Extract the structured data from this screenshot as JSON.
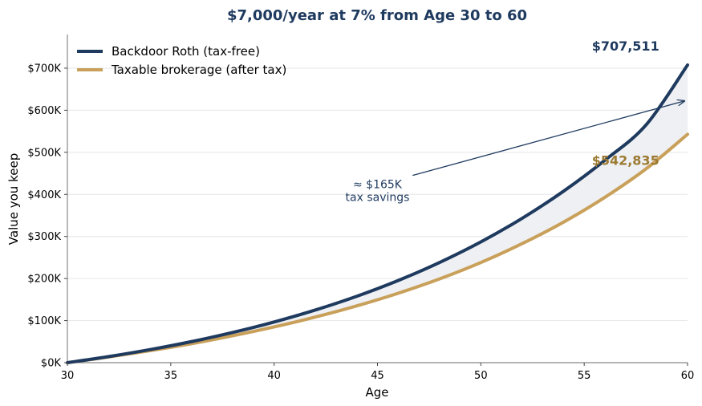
{
  "chart_data": {
    "type": "line",
    "title": "$7,000/year at 7% from Age 30 to 60",
    "xlabel": "Age",
    "ylabel": "Value you keep",
    "xlim": [
      30,
      60
    ],
    "ylim": [
      0,
      780000
    ],
    "x_ticks": [
      30,
      35,
      40,
      45,
      50,
      55,
      60
    ],
    "x_tick_labels": [
      "30",
      "35",
      "40",
      "45",
      "50",
      "55",
      "60"
    ],
    "y_ticks": [
      0,
      100000,
      200000,
      300000,
      400000,
      500000,
      600000,
      700000
    ],
    "y_tick_labels": [
      "$0K",
      "$100K",
      "$200K",
      "$300K",
      "$400K",
      "$500K",
      "$600K",
      "$700K"
    ],
    "grid": "horizontal",
    "legend_position": "top-left",
    "x": [
      30,
      32,
      34,
      36,
      38,
      40,
      42,
      44,
      46,
      48,
      50,
      52,
      54,
      56,
      58,
      60
    ],
    "series": [
      {
        "name": "Backdoor Roth (tax-free)",
        "color": "#1f3a5f",
        "values": [
          0,
          14490,
          31080,
          50070,
          71820,
          96720,
          125250,
          157900,
          195300,
          238100,
          287000,
          343200,
          407500,
          481200,
          565500,
          707511
        ]
      },
      {
        "name": "Taxable brokerage (after tax)",
        "color": "#c9a05a",
        "values": [
          0,
          13500,
          28500,
          45000,
          64000,
          85000,
          108500,
          135000,
          165000,
          199000,
          238000,
          283000,
          334000,
          393000,
          461000,
          542835
        ]
      }
    ],
    "end_labels": [
      {
        "text": "$707,511",
        "color": "#1f3a5f"
      },
      {
        "text": "$542,835",
        "color": "#9c7a33"
      }
    ],
    "shaded_region": {
      "between": [
        "Backdoor Roth (tax-free)",
        "Taxable brokerage (after tax)"
      ],
      "color": "#eef0f3"
    },
    "annotation": {
      "lines": [
        "≈ $165K",
        "tax savings"
      ],
      "arrow_from": {
        "x": 46.7,
        "y": 445000
      },
      "arrow_to": {
        "x": 60,
        "y": 622000
      },
      "text_at": {
        "x": 45,
        "y": 415000
      },
      "color": "#1f3a5f"
    }
  }
}
